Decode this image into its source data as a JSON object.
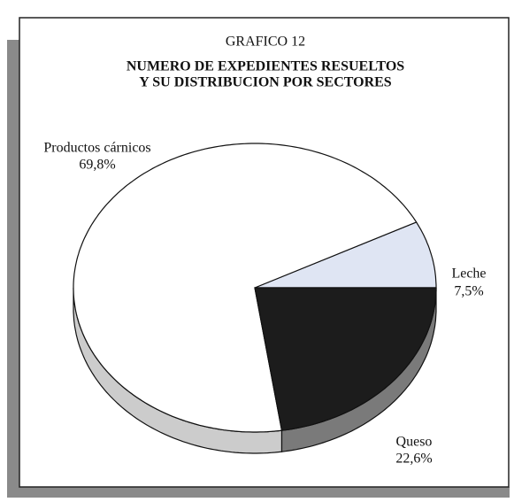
{
  "chart_data": {
    "type": "pie",
    "title": "GRAFICO 12",
    "subtitle": [
      "NUMERO DE EXPEDIENTES RESUELTOS",
      "Y SU DISTRIBUCION POR SECTORES"
    ],
    "categories": [
      "Leche",
      "Productos cárnicos",
      "Queso"
    ],
    "values": [
      7.5,
      69.8,
      22.6
    ],
    "value_labels": [
      "7,5%",
      "69,8%",
      "22,6%"
    ],
    "colors": [
      "#dfe5f3",
      "#ffffff",
      "#1c1c1c"
    ]
  }
}
